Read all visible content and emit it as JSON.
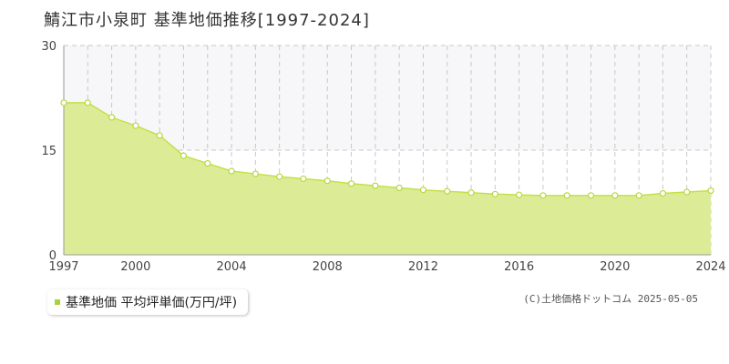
{
  "title": "鯖江市小泉町 基準地価推移[1997-2024]",
  "colors": {
    "area_fill": "#dcec96",
    "line": "#c4e04a",
    "marker_stroke": "#b8d840",
    "marker_fill": "#ffffff",
    "grid": "#c8c8c8",
    "band": "#f7f7f9",
    "legend_swatch": "#a8d23a"
  },
  "legend": {
    "label": "基準地価 平均坪単価(万円/坪)"
  },
  "source": "(C)土地価格ドットコム 2025-05-05",
  "chart_data": {
    "type": "area",
    "x": [
      1997,
      1998,
      1999,
      2000,
      2001,
      2002,
      2003,
      2004,
      2005,
      2006,
      2007,
      2008,
      2009,
      2010,
      2011,
      2012,
      2013,
      2014,
      2015,
      2016,
      2017,
      2018,
      2019,
      2020,
      2021,
      2022,
      2023,
      2024
    ],
    "series": [
      {
        "name": "基準地価 平均坪単価(万円/坪)",
        "values": [
          21.8,
          21.8,
          19.7,
          18.5,
          17.1,
          14.2,
          13.1,
          12.0,
          11.6,
          11.2,
          10.9,
          10.6,
          10.2,
          9.9,
          9.6,
          9.3,
          9.1,
          8.9,
          8.7,
          8.6,
          8.5,
          8.5,
          8.5,
          8.5,
          8.5,
          8.8,
          9.0,
          9.2
        ]
      }
    ],
    "x_tick_labels": [
      "1997",
      "2000",
      "2004",
      "2008",
      "2012",
      "2016",
      "2020",
      "2024"
    ],
    "y_tick_labels": [
      "0",
      "15",
      "30"
    ],
    "xlim": [
      1997,
      2024
    ],
    "ylim": [
      0,
      30
    ],
    "grid": true,
    "legend_position": "bottom-left"
  }
}
